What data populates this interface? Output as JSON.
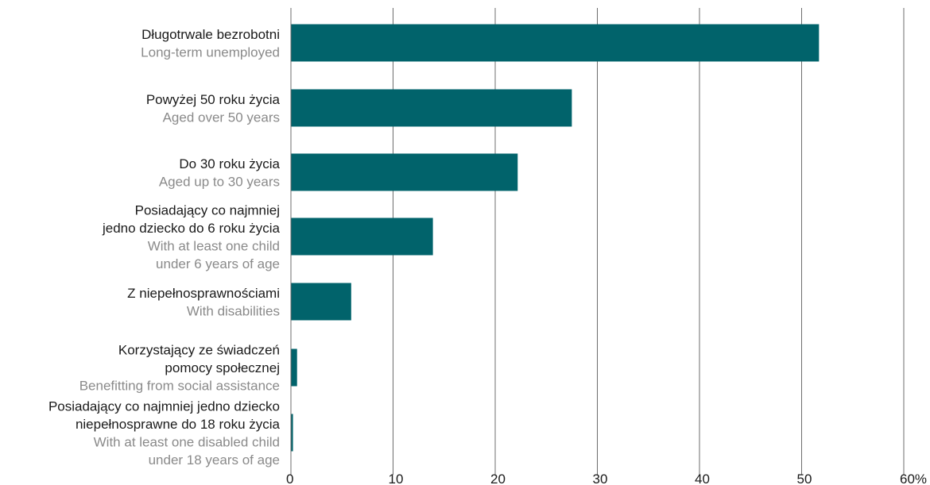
{
  "chart_data": {
    "type": "bar",
    "orientation": "horizontal",
    "title": "",
    "xlabel": "",
    "ylabel": "",
    "xlim": [
      0,
      60
    ],
    "x_ticks": [
      0,
      10,
      20,
      30,
      40,
      50,
      60
    ],
    "x_tick_labels": [
      "0",
      "10",
      "20",
      "30",
      "40",
      "50",
      "60%"
    ],
    "grid": "vertical",
    "bar_color": "#01636b",
    "categories": [
      {
        "pl": [
          "Długotrwale bezrobotni"
        ],
        "en": [
          "Long-term unemployed"
        ],
        "value": 51.7
      },
      {
        "pl": [
          "Powyżej 50 roku życia"
        ],
        "en": [
          "Aged over 50 years"
        ],
        "value": 27.5
      },
      {
        "pl": [
          "Do 30 roku życia"
        ],
        "en": [
          "Aged up to 30 years"
        ],
        "value": 22.2
      },
      {
        "pl": [
          "Posiadający co najmniej",
          "jedno dziecko do 6 roku życia"
        ],
        "en": [
          "With at least one child",
          "under 6 years of age"
        ],
        "value": 13.9
      },
      {
        "pl": [
          "Z niepełnosprawnościami"
        ],
        "en": [
          "With disabilities"
        ],
        "value": 5.9
      },
      {
        "pl": [
          "Korzystający ze świadczeń",
          "pomocy społecznej"
        ],
        "en": [
          "Benefitting from social assistance"
        ],
        "value": 0.6
      },
      {
        "pl": [
          "Posiadający co najmniej jedno dziecko",
          "niepełnosprawne do 18 roku życia"
        ],
        "en": [
          "With at least one disabled child",
          "under 18 years of age"
        ],
        "value": 0.2
      }
    ]
  }
}
